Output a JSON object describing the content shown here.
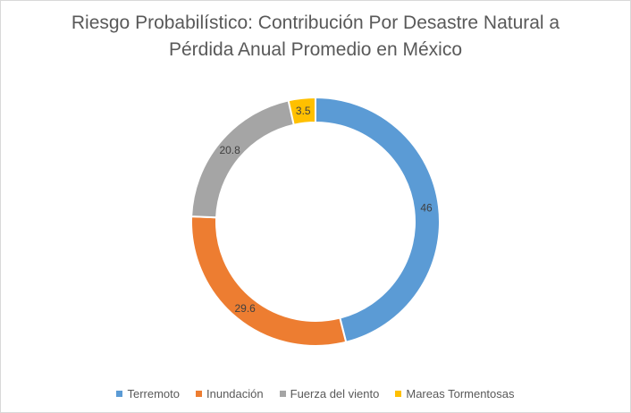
{
  "chart_data": {
    "type": "pie",
    "title_lines": [
      "Riesgo Probabilístico: Contribución Por Desastre Natural a",
      "Pérdida Anual Promedio en México"
    ],
    "categories": [
      "Terremoto",
      "Inundación",
      "Fuerza del viento",
      "Mareas Tormentosas"
    ],
    "values": [
      46,
      29.6,
      20.8,
      3.5
    ],
    "value_labels": [
      "46",
      "29.6",
      "20.8",
      "3.5"
    ],
    "colors": [
      "#5b9bd5",
      "#ed7d31",
      "#a5a5a5",
      "#ffc000"
    ],
    "style": "doughnut",
    "legend_position": "bottom"
  }
}
